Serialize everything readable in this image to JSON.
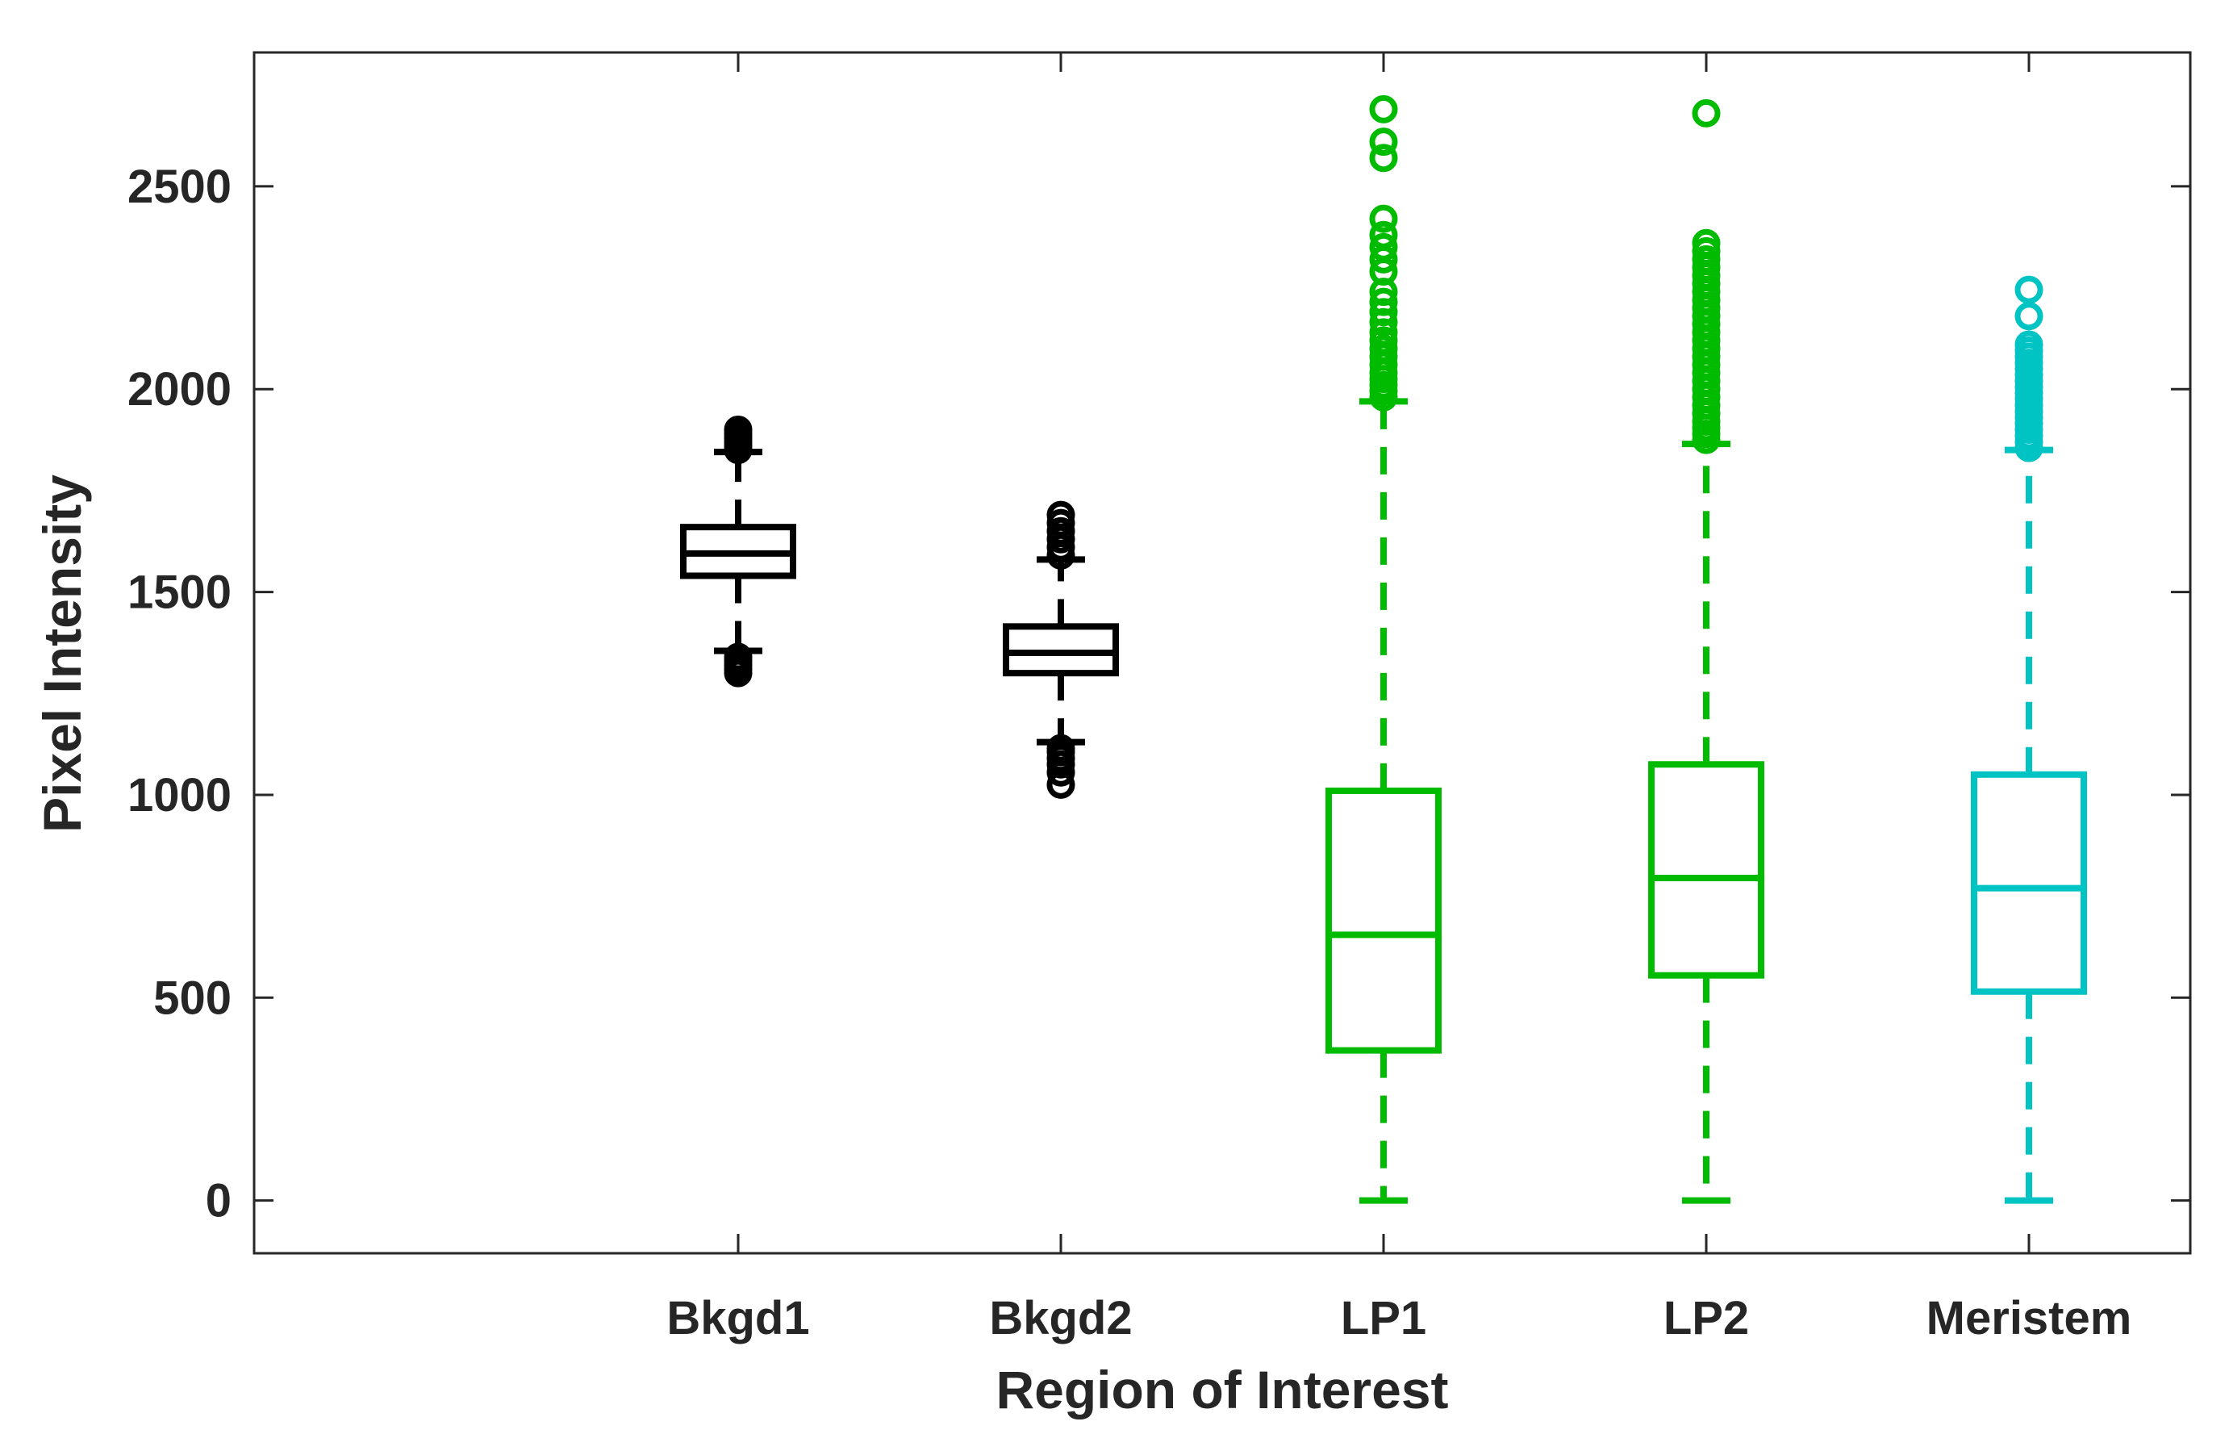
{
  "chart_data": {
    "type": "boxplot",
    "title": "",
    "xlabel": "Region of Interest",
    "ylabel": "Pixel Intensity",
    "ylim": [
      -130,
      2830
    ],
    "yticks": [
      0,
      500,
      1000,
      1500,
      2000,
      2500
    ],
    "grid": false,
    "categories": [
      "Bkgd1",
      "Bkgd2",
      "LP1",
      "LP2",
      "Meristem"
    ],
    "colors": [
      "#000000",
      "#000000",
      "#00bb00",
      "#00bb00",
      "#00c4c4"
    ],
    "boxes": [
      {
        "category": "Bkgd1",
        "whisker_low": 1355,
        "q1": 1540,
        "median": 1595,
        "q3": 1660,
        "whisker_high": 1845,
        "outliers": [
          1300,
          1310,
          1320,
          1330,
          1340,
          1850,
          1860,
          1870,
          1880,
          1890,
          1900
        ]
      },
      {
        "category": "Bkgd2",
        "whisker_low": 1130,
        "q1": 1300,
        "median": 1350,
        "q3": 1415,
        "whisker_high": 1580,
        "outliers": [
          1025,
          1055,
          1075,
          1090,
          1105,
          1115,
          1590,
          1610,
          1630,
          1650,
          1670,
          1690
        ]
      },
      {
        "category": "LP1",
        "whisker_low": 0,
        "q1": 370,
        "median": 655,
        "q3": 1010,
        "whisker_high": 1970,
        "outliers": [
          1980,
          1995,
          2010,
          2025,
          2040,
          2060,
          2080,
          2100,
          2120,
          2140,
          2165,
          2190,
          2215,
          2240,
          2290,
          2320,
          2350,
          2380,
          2420,
          2570,
          2610,
          2690
        ]
      },
      {
        "category": "LP2",
        "whisker_low": 0,
        "q1": 555,
        "median": 795,
        "q3": 1075,
        "whisker_high": 1865,
        "outliers": [
          1875,
          1890,
          1905,
          1920,
          1940,
          1960,
          1980,
          2000,
          2020,
          2040,
          2060,
          2080,
          2100,
          2120,
          2140,
          2160,
          2180,
          2200,
          2220,
          2240,
          2260,
          2280,
          2300,
          2320,
          2340,
          2360,
          2680
        ]
      },
      {
        "category": "Meristem",
        "whisker_low": 0,
        "q1": 515,
        "median": 770,
        "q3": 1050,
        "whisker_high": 1850,
        "outliers": [
          1855,
          1870,
          1885,
          1900,
          1915,
          1930,
          1945,
          1960,
          1975,
          1990,
          2005,
          2020,
          2035,
          2050,
          2065,
          2080,
          2095,
          2110,
          2180,
          2245
        ]
      }
    ]
  }
}
